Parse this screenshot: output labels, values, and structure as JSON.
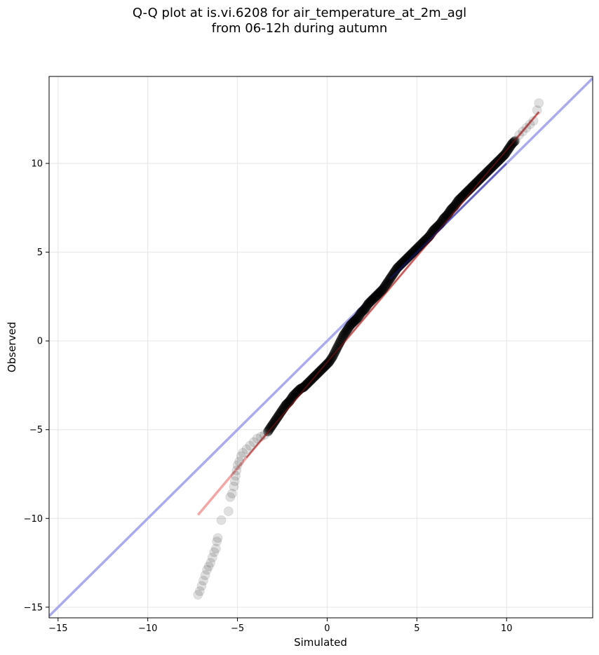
{
  "chart_data": {
    "type": "scatter",
    "title_line1": "Q-Q plot at is.vi.6208 for air_temperature_at_2m_agl",
    "title_line2": "from 06-12h during autumn",
    "xlabel": "Simulated",
    "ylabel": "Observed",
    "xlim": [
      -15.5,
      14.8
    ],
    "ylim": [
      -15.6,
      14.9
    ],
    "xticks": [
      -15,
      -10,
      -5,
      0,
      5,
      10
    ],
    "yticks": [
      -15,
      -10,
      -5,
      0,
      5,
      10
    ],
    "xtick_labels": [
      "−15",
      "−10",
      "−5",
      "0",
      "5",
      "10"
    ],
    "ytick_labels": [
      "−15",
      "−10",
      "−5",
      "0",
      "5",
      "10"
    ],
    "grid": true,
    "colors": {
      "identity_line": "#aaaaf0",
      "fit_line": "#f4a6a6",
      "points": "#000000",
      "dense_overlay": "#1a1a8a",
      "dense_red": "#8a1a1a"
    },
    "identity_line": {
      "x": [
        -15.5,
        14.8
      ],
      "y": [
        -15.5,
        14.8
      ]
    },
    "fit_line": {
      "x": [
        -7.2,
        11.8
      ],
      "y": [
        -9.8,
        12.9
      ]
    },
    "points": {
      "x": [
        -7.2,
        -7.1,
        -7.0,
        -6.9,
        -6.8,
        -6.7,
        -6.6,
        -6.5,
        -6.4,
        -6.3,
        -6.2,
        -6.15,
        -6.1,
        -5.9,
        -5.5,
        -5.4,
        -5.3,
        -5.2,
        -5.15,
        -5.1,
        -5.05,
        -5.0,
        -4.9,
        -4.8,
        -4.7,
        -4.5,
        -4.3,
        -4.1,
        -3.9,
        -3.7,
        -3.5,
        -3.3,
        -3.1,
        -2.9,
        -2.7,
        -2.5,
        -2.3,
        -2.1,
        -1.9,
        -1.7,
        -1.5,
        -1.3,
        -1.1,
        -0.9,
        -0.7,
        -0.5,
        -0.3,
        -0.1,
        0.1,
        0.3,
        0.5,
        0.7,
        0.9,
        1.1,
        1.3,
        1.5,
        1.7,
        1.9,
        2.1,
        2.3,
        2.5,
        2.7,
        2.9,
        3.1,
        3.3,
        3.5,
        3.7,
        3.9,
        4.1,
        4.3,
        4.5,
        4.7,
        4.9,
        5.1,
        5.3,
        5.5,
        5.7,
        5.9,
        6.1,
        6.3,
        6.5,
        6.7,
        6.9,
        7.1,
        7.3,
        7.5,
        7.7,
        7.9,
        8.1,
        8.3,
        8.5,
        8.7,
        8.9,
        9.1,
        9.3,
        9.5,
        9.7,
        9.9,
        10.1,
        10.3,
        10.5,
        10.7,
        10.9,
        11.1,
        11.3,
        11.5,
        11.7,
        11.8
      ],
      "y": [
        -14.3,
        -14.1,
        -13.8,
        -13.5,
        -13.2,
        -12.9,
        -12.7,
        -12.5,
        -12.2,
        -11.9,
        -11.7,
        -11.3,
        -11.1,
        -10.1,
        -9.6,
        -8.8,
        -8.6,
        -8.2,
        -7.9,
        -7.6,
        -7.3,
        -7.0,
        -6.8,
        -6.5,
        -6.3,
        -6.1,
        -5.9,
        -5.7,
        -5.5,
        -5.4,
        -5.3,
        -5.1,
        -4.8,
        -4.5,
        -4.2,
        -3.9,
        -3.6,
        -3.4,
        -3.1,
        -2.9,
        -2.7,
        -2.6,
        -2.4,
        -2.2,
        -2.0,
        -1.8,
        -1.6,
        -1.4,
        -1.2,
        -0.9,
        -0.5,
        -0.1,
        0.3,
        0.6,
        0.9,
        1.1,
        1.3,
        1.6,
        1.8,
        2.1,
        2.3,
        2.5,
        2.7,
        2.9,
        3.2,
        3.5,
        3.8,
        4.1,
        4.3,
        4.5,
        4.7,
        4.9,
        5.1,
        5.3,
        5.5,
        5.7,
        5.9,
        6.2,
        6.4,
        6.6,
        6.9,
        7.1,
        7.4,
        7.6,
        7.9,
        8.1,
        8.3,
        8.5,
        8.7,
        8.9,
        9.1,
        9.3,
        9.5,
        9.7,
        9.9,
        10.1,
        10.3,
        10.5,
        10.8,
        11.1,
        11.3,
        11.6,
        11.8,
        12.0,
        12.2,
        12.4,
        13.0,
        13.4
      ]
    }
  }
}
